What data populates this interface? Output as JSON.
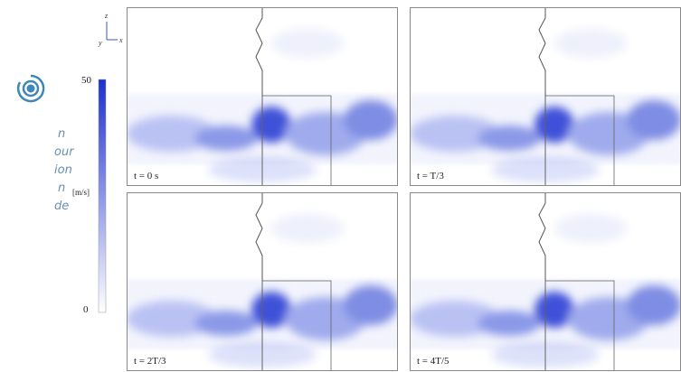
{
  "side_text": {
    "lines": [
      "n",
      "our",
      "ion",
      "n",
      "de"
    ]
  },
  "figure": {
    "axes": {
      "z": "z",
      "x": "x",
      "y": "y"
    },
    "colorbar": {
      "max_label": "50",
      "min_label": "0",
      "unit": "[m/s]"
    },
    "panels": [
      {
        "label": "t = 0 s"
      },
      {
        "label": "t = T/3"
      },
      {
        "label": "t = 2T/3"
      },
      {
        "label": "t = 4T/5"
      }
    ]
  }
}
